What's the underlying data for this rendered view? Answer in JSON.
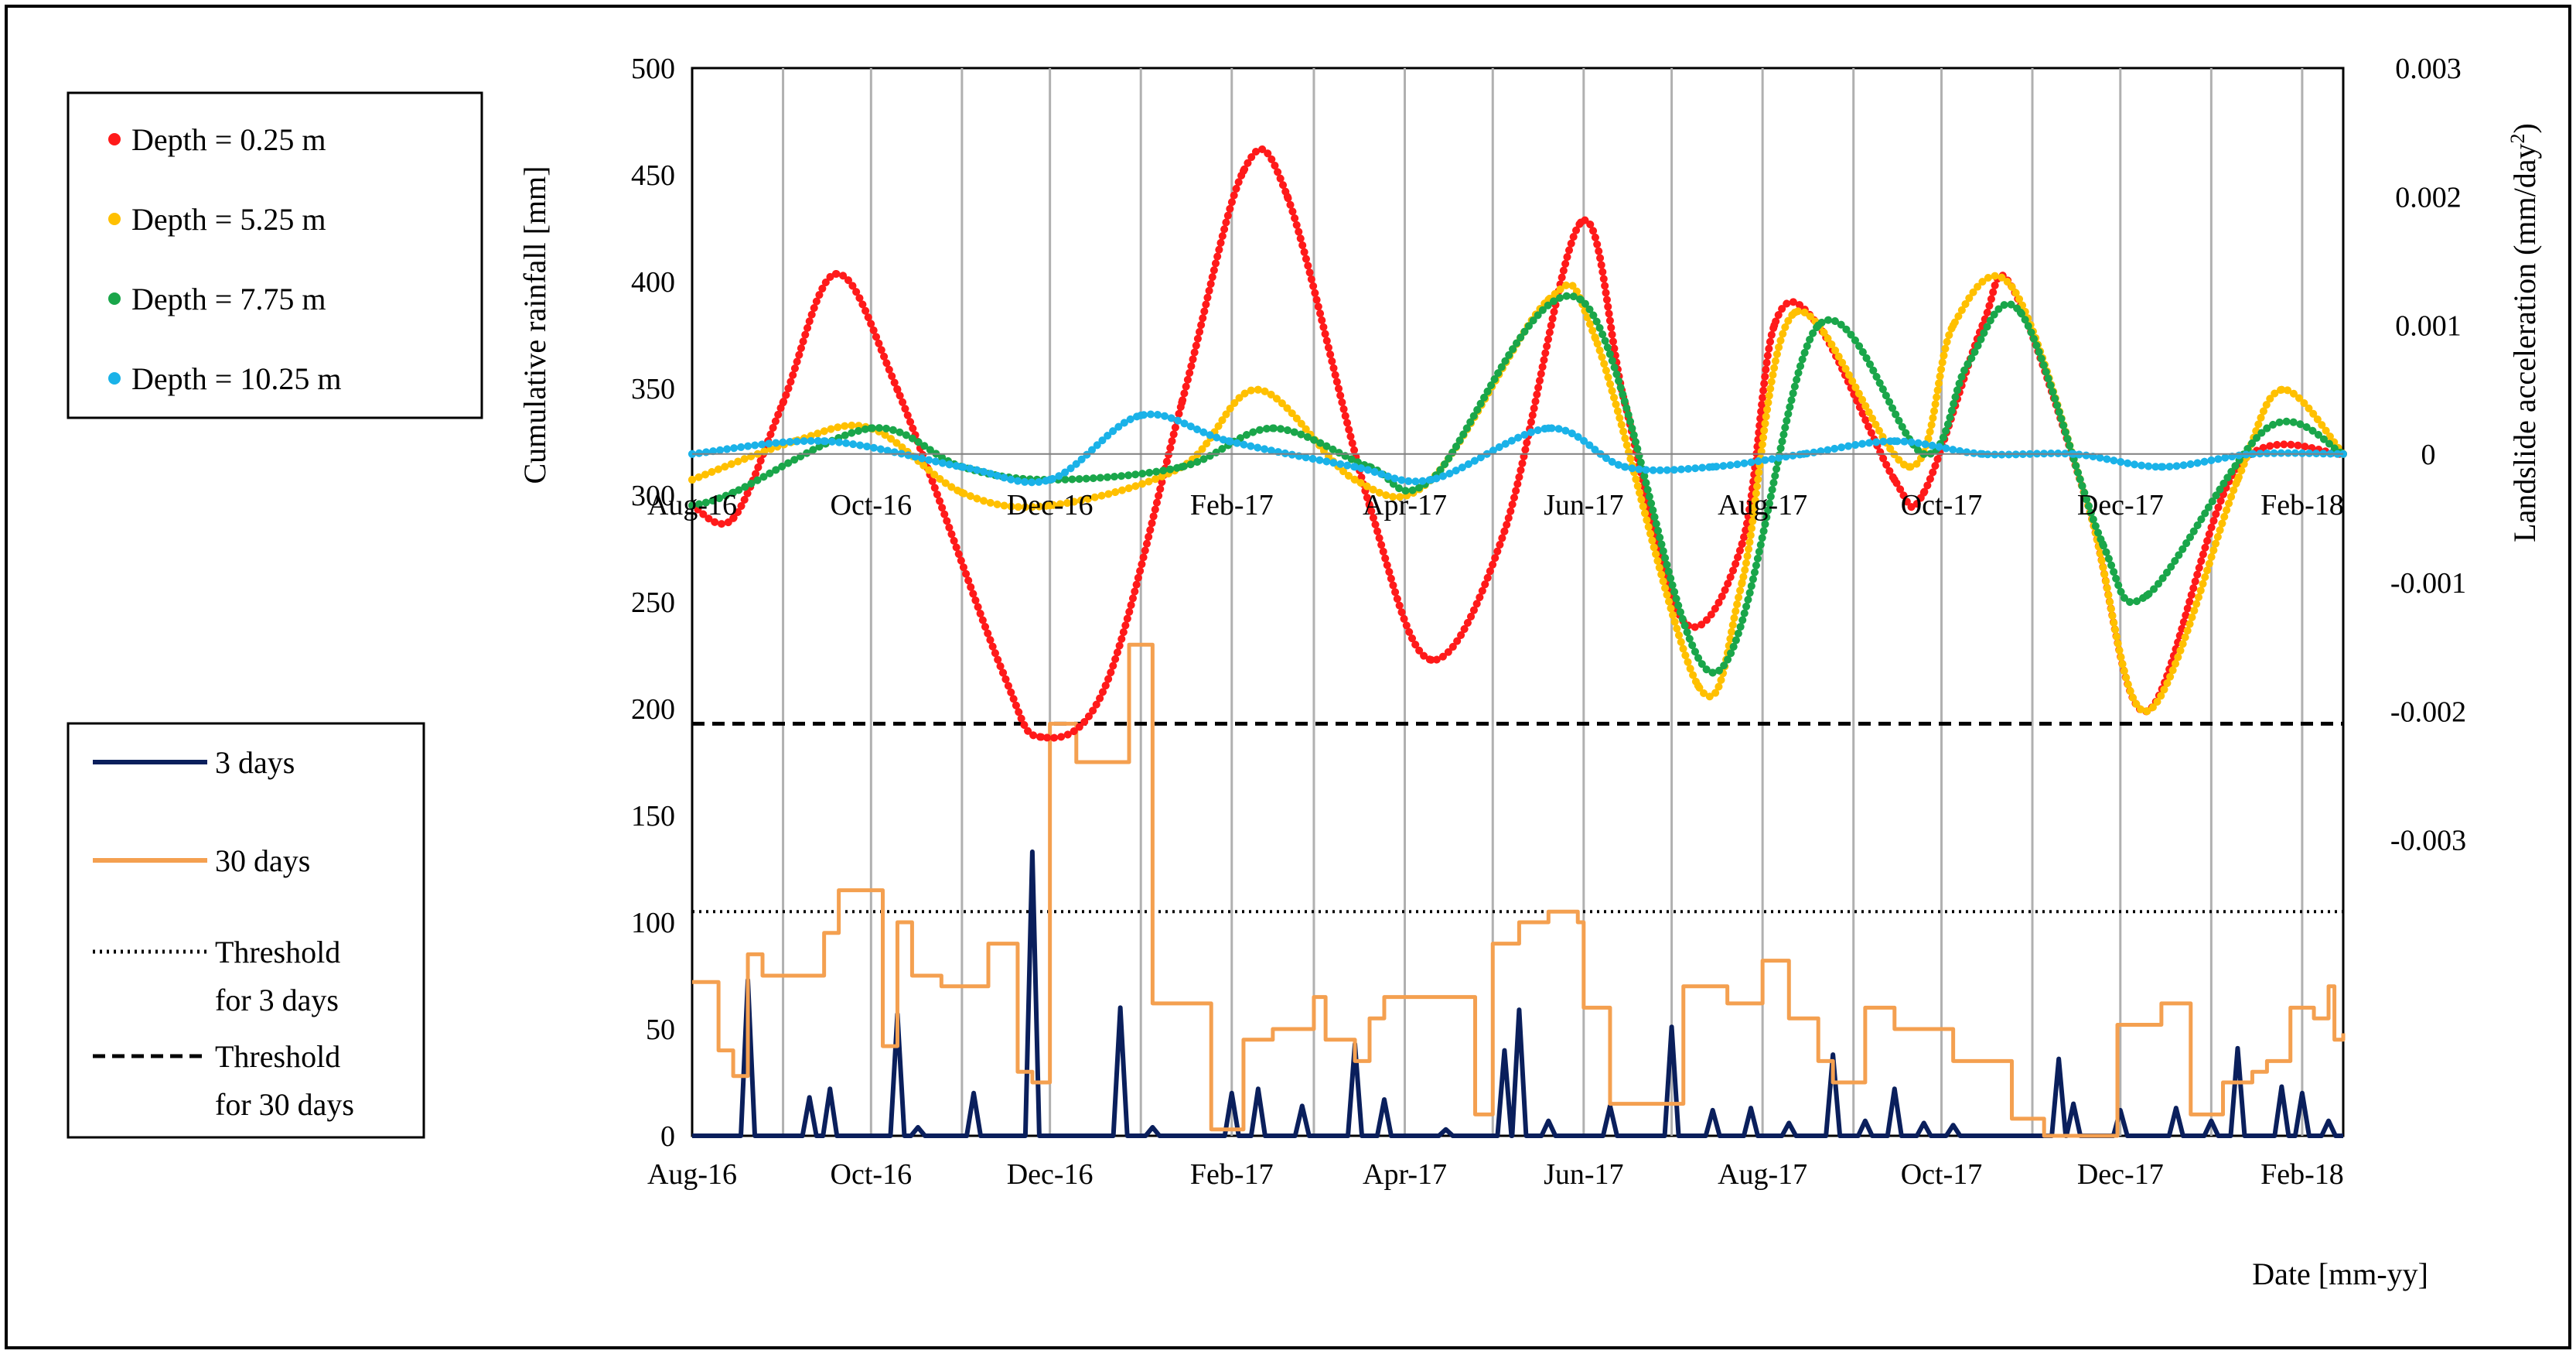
{
  "colors": {
    "depth_0_25": "#ff1a1a",
    "depth_5_25": "#ffc000",
    "depth_7_75": "#1aa64a",
    "depth_10_25": "#1ab2e8",
    "rain_3days": "#0a1f5c",
    "rain_30days": "#f4a050",
    "grid": "#b0b0b0",
    "threshold": "#000000"
  },
  "legend_top": {
    "items": [
      {
        "label": "Depth = 0.25 m",
        "color": "#ff1a1a",
        "marker": "dot"
      },
      {
        "label": "Depth = 5.25 m",
        "color": "#ffc000",
        "marker": "dot"
      },
      {
        "label": "Depth = 7.75 m",
        "color": "#1aa64a",
        "marker": "dot"
      },
      {
        "label": "Depth = 10.25 m",
        "color": "#1ab2e8",
        "marker": "dot"
      }
    ]
  },
  "legend_bottom": {
    "items": [
      {
        "lines": [
          "3 days"
        ],
        "color": "#0a1f5c",
        "style": "solid"
      },
      {
        "lines": [
          "30 days"
        ],
        "color": "#f4a050",
        "style": "solid"
      },
      {
        "lines": [
          "Threshold",
          "for 3 days"
        ],
        "color": "#000000",
        "style": "dotted"
      },
      {
        "lines": [
          "Threshold",
          "for 30 days"
        ],
        "color": "#000000",
        "style": "dashed"
      }
    ]
  },
  "chart_data": {
    "type": "line",
    "x_axis": {
      "title": "Date [mm-yy]",
      "range": [
        "2016-08-01",
        "2018-02-15"
      ],
      "tick_labels": [
        "Aug-16",
        "Oct-16",
        "Dec-16",
        "Feb-17",
        "Apr-17",
        "Jun-17",
        "Aug-17",
        "Oct-17",
        "Dec-17",
        "Feb-18"
      ],
      "tick_dates": [
        "2016-08-01",
        "2016-10-01",
        "2016-12-01",
        "2017-02-01",
        "2017-04-01",
        "2017-06-01",
        "2017-08-01",
        "2017-10-01",
        "2017-12-01",
        "2018-02-01"
      ],
      "vertical_grid_dates": [
        "2016-09-01",
        "2016-10-01",
        "2016-11-01",
        "2016-12-01",
        "2017-01-01",
        "2017-02-01",
        "2017-03-01",
        "2017-04-01",
        "2017-05-01",
        "2017-06-01",
        "2017-07-01",
        "2017-08-01",
        "2017-09-01",
        "2017-10-01",
        "2017-11-01",
        "2017-12-01",
        "2018-01-01",
        "2018-02-01"
      ]
    },
    "y_left": {
      "title": "Cumulative rainfall [mm]",
      "range": [
        0,
        500
      ],
      "ticks": [
        0,
        50,
        100,
        150,
        200,
        250,
        300,
        350,
        400,
        450,
        500
      ]
    },
    "y_right": {
      "title_main": "Landslide acceleration (mm/day",
      "title_sup": "2",
      "title_end": ")",
      "range": [
        -0.0053,
        0.003
      ],
      "ticks": [
        0.003,
        0.002,
        0.001,
        0,
        -0.001,
        -0.002,
        -0.003
      ],
      "tick_labels": [
        "0.003",
        "0.002",
        "0.001",
        "0",
        "-0.001",
        "-0.002",
        "-0.003"
      ]
    },
    "thresholds": {
      "three_days_mm": 105,
      "thirty_days_mm": 193
    },
    "series_acceleration": [
      {
        "name": "Depth = 0.25 m",
        "color": "#ff1a1a",
        "axis": "right",
        "points": [
          [
            "2016-08-01",
            -0.0004
          ],
          [
            "2016-08-15",
            -0.0005
          ],
          [
            "2016-09-01",
            0.0004
          ],
          [
            "2016-09-19",
            0.0014
          ],
          [
            "2016-10-10",
            0.0005
          ],
          [
            "2016-11-15",
            -0.0017
          ],
          [
            "2016-11-28",
            -0.0022
          ],
          [
            "2016-12-20",
            -0.0018
          ],
          [
            "2017-01-15",
            0.0004
          ],
          [
            "2017-02-05",
            0.0022
          ],
          [
            "2017-02-20",
            0.002
          ],
          [
            "2017-03-20",
            -0.0004
          ],
          [
            "2017-04-10",
            -0.0016
          ],
          [
            "2017-05-05",
            -0.0006
          ],
          [
            "2017-05-31",
            0.0018
          ],
          [
            "2017-06-15",
            0.0004
          ],
          [
            "2017-07-05",
            -0.0013
          ],
          [
            "2017-07-25",
            -0.0007
          ],
          [
            "2017-08-05",
            0.001
          ],
          [
            "2017-08-20",
            0.001
          ],
          [
            "2017-09-15",
            -0.0002
          ],
          [
            "2017-09-25",
            -0.0003
          ],
          [
            "2017-10-15",
            0.001
          ],
          [
            "2017-10-25",
            0.0013
          ],
          [
            "2017-11-20",
            -0.0004
          ],
          [
            "2017-12-10",
            -0.002
          ],
          [
            "2018-01-10",
            -0.0001
          ],
          [
            "2018-02-15",
            0.0
          ]
        ]
      },
      {
        "name": "Depth = 5.25 m",
        "color": "#ffc000",
        "axis": "right",
        "points": [
          [
            "2016-08-01",
            -0.0002
          ],
          [
            "2016-09-05",
            0.0001
          ],
          [
            "2016-10-01",
            0.0002
          ],
          [
            "2016-11-01",
            -0.0003
          ],
          [
            "2016-12-01",
            -0.0004
          ],
          [
            "2017-01-15",
            -0.0001
          ],
          [
            "2017-02-10",
            0.0005
          ],
          [
            "2017-03-15",
            -0.0002
          ],
          [
            "2017-04-10",
            -0.0002
          ],
          [
            "2017-05-20",
            0.0012
          ],
          [
            "2017-06-05",
            0.0009
          ],
          [
            "2017-07-10",
            -0.0018
          ],
          [
            "2017-07-25",
            -0.001
          ],
          [
            "2017-08-12",
            0.0011
          ],
          [
            "2017-09-20",
            -0.0001
          ],
          [
            "2017-10-05",
            0.001
          ],
          [
            "2017-10-25",
            0.0013
          ],
          [
            "2017-11-20",
            -0.0004
          ],
          [
            "2017-12-10",
            -0.002
          ],
          [
            "2018-01-10",
            -0.0002
          ],
          [
            "2018-01-25",
            0.0005
          ],
          [
            "2018-02-15",
            0.0
          ]
        ]
      },
      {
        "name": "Depth = 7.75 m",
        "color": "#1aa64a",
        "axis": "right",
        "points": [
          [
            "2016-08-01",
            -0.0004
          ],
          [
            "2016-08-15",
            -0.0003
          ],
          [
            "2016-10-01",
            0.0002
          ],
          [
            "2016-11-01",
            -0.0001
          ],
          [
            "2016-12-01",
            -0.0002
          ],
          [
            "2017-01-15",
            -0.0001
          ],
          [
            "2017-02-15",
            0.0002
          ],
          [
            "2017-03-20",
            -0.0001
          ],
          [
            "2017-04-10",
            -0.0002
          ],
          [
            "2017-05-31",
            0.0012
          ],
          [
            "2017-07-15",
            -0.0017
          ],
          [
            "2017-08-20",
            0.001
          ],
          [
            "2017-09-25",
            0.0
          ],
          [
            "2017-10-10",
            0.0007
          ],
          [
            "2017-10-28",
            0.0011
          ],
          [
            "2017-11-25",
            -0.0007
          ],
          [
            "2017-12-10",
            -0.0011
          ],
          [
            "2018-01-20",
            0.0002
          ],
          [
            "2018-02-15",
            0.0
          ]
        ]
      },
      {
        "name": "Depth = 10.25 m",
        "color": "#1ab2e8",
        "axis": "right",
        "points": [
          [
            "2016-08-01",
            0.0
          ],
          [
            "2016-09-15",
            0.0001
          ],
          [
            "2016-11-01",
            -0.0001
          ],
          [
            "2016-12-01",
            -0.0002
          ],
          [
            "2017-01-01",
            0.0003
          ],
          [
            "2017-01-31",
            0.0001
          ],
          [
            "2017-03-15",
            -0.0001
          ],
          [
            "2017-04-10",
            -0.0002
          ],
          [
            "2017-05-20",
            0.0002
          ],
          [
            "2017-06-15",
            -0.0001
          ],
          [
            "2017-07-15",
            -0.0001
          ],
          [
            "2017-08-15",
            0.0
          ],
          [
            "2017-09-15",
            0.0001
          ],
          [
            "2017-10-15",
            0.0
          ],
          [
            "2017-11-15",
            0.0
          ],
          [
            "2017-12-15",
            -0.0001
          ],
          [
            "2018-01-15",
            0.0
          ],
          [
            "2018-02-15",
            0.0
          ]
        ]
      }
    ],
    "series_rainfall": [
      {
        "name": "3 days",
        "color": "#0a1f5c",
        "axis": "left",
        "style": "spikes",
        "baseline": 0,
        "spikes": [
          [
            "2016-08-05",
            0
          ],
          [
            "2016-08-20",
            73
          ],
          [
            "2016-09-10",
            18
          ],
          [
            "2016-09-17",
            22
          ],
          [
            "2016-10-10",
            57
          ],
          [
            "2016-10-17",
            4
          ],
          [
            "2016-11-05",
            20
          ],
          [
            "2016-11-25",
            133
          ],
          [
            "2016-12-25",
            60
          ],
          [
            "2017-01-05",
            4
          ],
          [
            "2017-02-01",
            20
          ],
          [
            "2017-02-10",
            22
          ],
          [
            "2017-02-25",
            14
          ],
          [
            "2017-03-15",
            43
          ],
          [
            "2017-03-25",
            17
          ],
          [
            "2017-04-15",
            3
          ],
          [
            "2017-05-05",
            40
          ],
          [
            "2017-05-10",
            59
          ],
          [
            "2017-05-20",
            7
          ],
          [
            "2017-06-10",
            14
          ],
          [
            "2017-07-01",
            51
          ],
          [
            "2017-07-15",
            12
          ],
          [
            "2017-07-28",
            13
          ],
          [
            "2017-08-10",
            6
          ],
          [
            "2017-08-25",
            38
          ],
          [
            "2017-09-05",
            7
          ],
          [
            "2017-09-15",
            22
          ],
          [
            "2017-09-25",
            6
          ],
          [
            "2017-10-05",
            5
          ],
          [
            "2017-11-10",
            36
          ],
          [
            "2017-11-15",
            15
          ],
          [
            "2017-12-01",
            12
          ],
          [
            "2017-12-20",
            13
          ],
          [
            "2018-01-01",
            7
          ],
          [
            "2018-01-10",
            41
          ],
          [
            "2018-01-25",
            23
          ],
          [
            "2018-02-01",
            20
          ],
          [
            "2018-02-10",
            7
          ]
        ]
      },
      {
        "name": "30 days",
        "color": "#f4a050",
        "axis": "left",
        "style": "steps",
        "points": [
          [
            "2016-08-01",
            72
          ],
          [
            "2016-08-10",
            40
          ],
          [
            "2016-08-15",
            28
          ],
          [
            "2016-08-20",
            85
          ],
          [
            "2016-08-25",
            75
          ],
          [
            "2016-09-10",
            75
          ],
          [
            "2016-09-15",
            95
          ],
          [
            "2016-09-20",
            115
          ],
          [
            "2016-09-30",
            115
          ],
          [
            "2016-10-05",
            42
          ],
          [
            "2016-10-10",
            100
          ],
          [
            "2016-10-15",
            75
          ],
          [
            "2016-10-25",
            70
          ],
          [
            "2016-11-05",
            70
          ],
          [
            "2016-11-10",
            90
          ],
          [
            "2016-11-20",
            30
          ],
          [
            "2016-11-25",
            25
          ],
          [
            "2016-12-01",
            193
          ],
          [
            "2016-12-10",
            175
          ],
          [
            "2016-12-25",
            175
          ],
          [
            "2016-12-28",
            230
          ],
          [
            "2017-01-05",
            62
          ],
          [
            "2017-01-20",
            62
          ],
          [
            "2017-01-25",
            3
          ],
          [
            "2017-02-05",
            45
          ],
          [
            "2017-02-15",
            50
          ],
          [
            "2017-02-25",
            50
          ],
          [
            "2017-03-01",
            65
          ],
          [
            "2017-03-05",
            45
          ],
          [
            "2017-03-15",
            35
          ],
          [
            "2017-03-20",
            55
          ],
          [
            "2017-03-25",
            65
          ],
          [
            "2017-04-10",
            65
          ],
          [
            "2017-04-20",
            65
          ],
          [
            "2017-04-25",
            10
          ],
          [
            "2017-05-01",
            90
          ],
          [
            "2017-05-10",
            100
          ],
          [
            "2017-05-20",
            105
          ],
          [
            "2017-05-30",
            100
          ],
          [
            "2017-06-01",
            60
          ],
          [
            "2017-06-10",
            15
          ],
          [
            "2017-06-30",
            15
          ],
          [
            "2017-07-05",
            70
          ],
          [
            "2017-07-15",
            70
          ],
          [
            "2017-07-20",
            62
          ],
          [
            "2017-08-01",
            82
          ],
          [
            "2017-08-10",
            55
          ],
          [
            "2017-08-20",
            35
          ],
          [
            "2017-08-25",
            25
          ],
          [
            "2017-09-05",
            60
          ],
          [
            "2017-09-15",
            50
          ],
          [
            "2017-09-25",
            50
          ],
          [
            "2017-10-05",
            35
          ],
          [
            "2017-10-15",
            35
          ],
          [
            "2017-10-25",
            8
          ],
          [
            "2017-11-05",
            0
          ],
          [
            "2017-11-25",
            0
          ],
          [
            "2017-11-30",
            52
          ],
          [
            "2017-12-10",
            52
          ],
          [
            "2017-12-15",
            62
          ],
          [
            "2017-12-25",
            10
          ],
          [
            "2018-01-05",
            25
          ],
          [
            "2018-01-15",
            30
          ],
          [
            "2018-01-20",
            35
          ],
          [
            "2018-01-28",
            60
          ],
          [
            "2018-02-05",
            55
          ],
          [
            "2018-02-10",
            70
          ],
          [
            "2018-02-12",
            45
          ],
          [
            "2018-02-15",
            48
          ]
        ]
      }
    ]
  }
}
